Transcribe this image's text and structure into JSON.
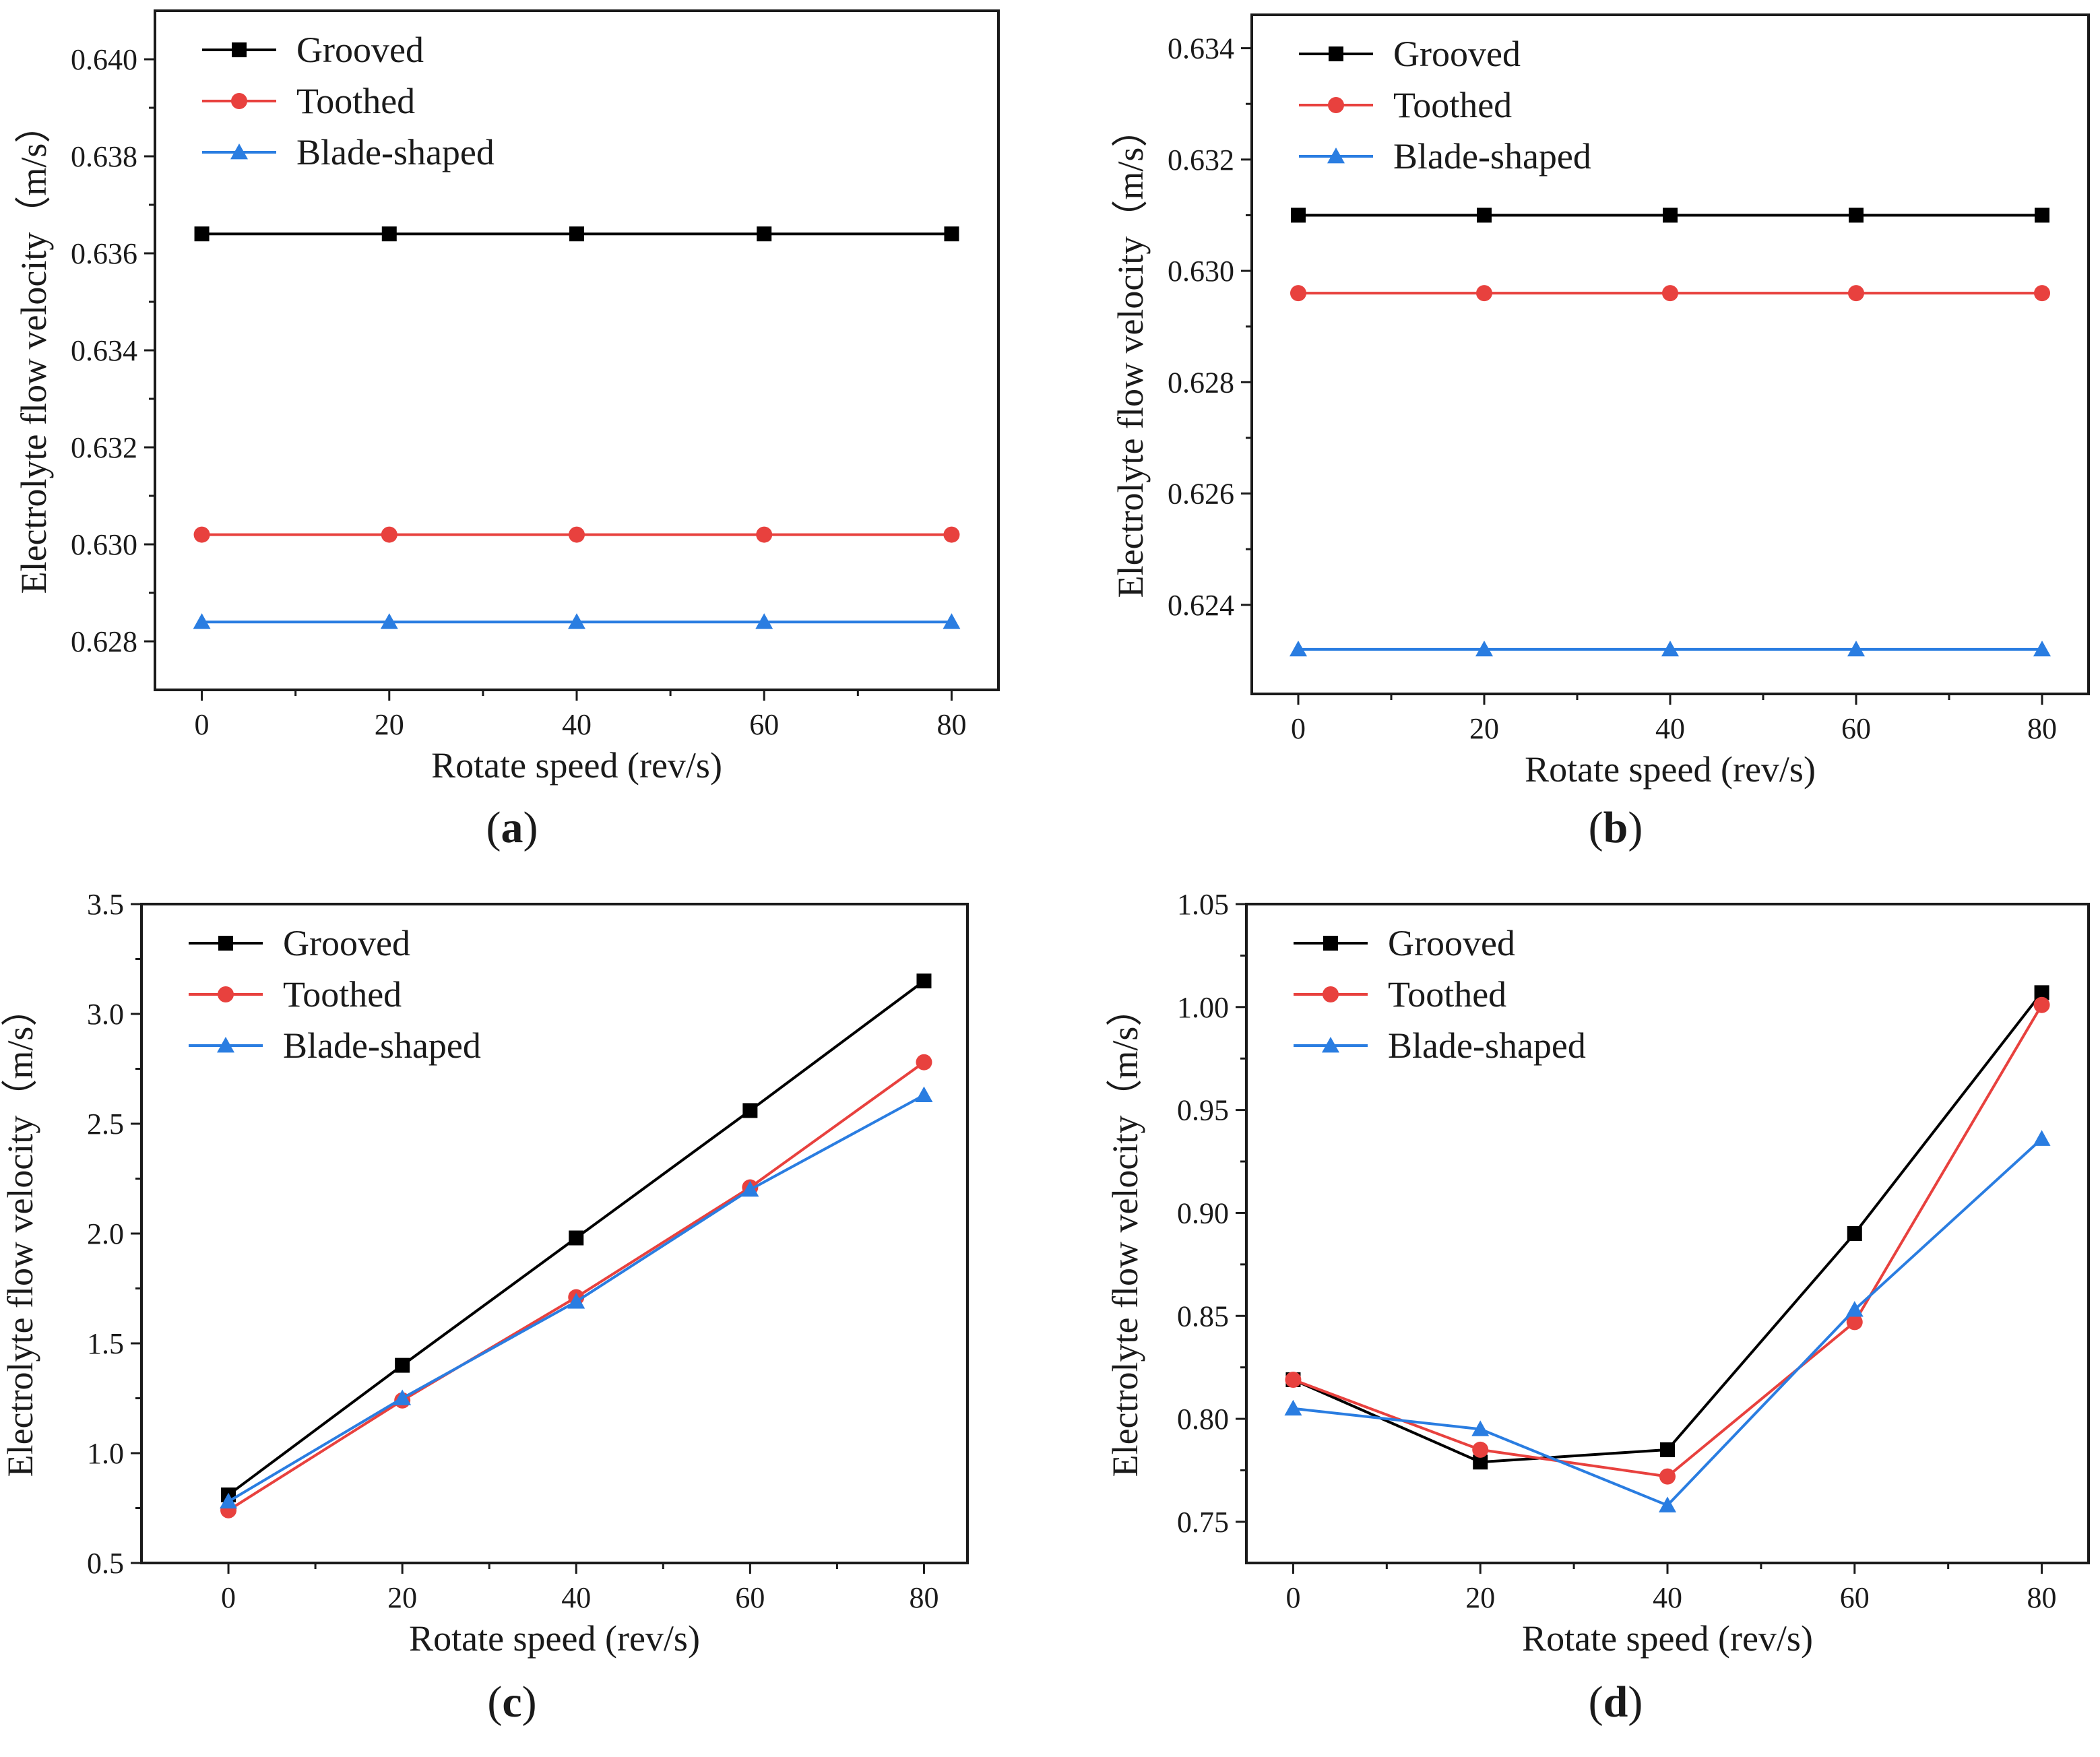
{
  "chart_data": [
    {
      "type": "line",
      "panel": "a",
      "caption": "a",
      "xlabel": "Rotate speed (rev/s)",
      "ylabel": "Electrolyte flow velocity（m/s）",
      "x": [
        0,
        20,
        40,
        60,
        80
      ],
      "xticks": [
        "0",
        "20",
        "40",
        "60",
        "80"
      ],
      "xlim": [
        -5,
        85
      ],
      "ylim": [
        0.627,
        0.641
      ],
      "yticks": [
        "0.628",
        "0.630",
        "0.632",
        "0.634",
        "0.636",
        "0.638",
        "0.640"
      ],
      "grid": false,
      "legend_position": "top-left",
      "series": [
        {
          "name": "Grooved",
          "color": "#000000",
          "marker": "square",
          "values": [
            0.6364,
            0.6364,
            0.6364,
            0.6364,
            0.6364
          ]
        },
        {
          "name": "Toothed",
          "color": "#e8413e",
          "marker": "circle",
          "values": [
            0.6302,
            0.6302,
            0.6302,
            0.6302,
            0.6302
          ]
        },
        {
          "name": "Blade-shaped",
          "color": "#2a7de1",
          "marker": "triangle",
          "values": [
            0.6284,
            0.6284,
            0.6284,
            0.6284,
            0.6284
          ]
        }
      ]
    },
    {
      "type": "line",
      "panel": "b",
      "caption": "b",
      "xlabel": "Rotate speed (rev/s)",
      "ylabel": "Electrolyte flow velocity（m/s）",
      "x": [
        0,
        20,
        40,
        60,
        80
      ],
      "xticks": [
        "0",
        "20",
        "40",
        "60",
        "80"
      ],
      "xlim": [
        -5,
        85
      ],
      "ylim": [
        0.6224,
        0.6346
      ],
      "yticks": [
        "0.624",
        "0.626",
        "0.628",
        "0.630",
        "0.632",
        "0.634"
      ],
      "grid": false,
      "legend_position": "top-left",
      "series": [
        {
          "name": "Grooved",
          "color": "#000000",
          "marker": "square",
          "values": [
            0.631,
            0.631,
            0.631,
            0.631,
            0.631
          ]
        },
        {
          "name": "Toothed",
          "color": "#e8413e",
          "marker": "circle",
          "values": [
            0.6296,
            0.6296,
            0.6296,
            0.6296,
            0.6296
          ]
        },
        {
          "name": "Blade-shaped",
          "color": "#2a7de1",
          "marker": "triangle",
          "values": [
            0.6232,
            0.6232,
            0.6232,
            0.6232,
            0.6232
          ]
        }
      ]
    },
    {
      "type": "line",
      "panel": "c",
      "caption": "c",
      "xlabel": "Rotate speed (rev/s)",
      "ylabel": "Electrolyte flow velocity（m/s）",
      "x": [
        0,
        20,
        40,
        60,
        80
      ],
      "xticks": [
        "0",
        "20",
        "40",
        "60",
        "80"
      ],
      "xlim": [
        -10,
        85
      ],
      "ylim": [
        0.5,
        3.5
      ],
      "yticks": [
        "0.5",
        "1.0",
        "1.5",
        "2.0",
        "2.5",
        "3.0",
        "3.5"
      ],
      "grid": false,
      "legend_position": "top-left",
      "series": [
        {
          "name": "Grooved",
          "color": "#000000",
          "marker": "square",
          "values": [
            0.81,
            1.4,
            1.98,
            2.56,
            3.15
          ]
        },
        {
          "name": "Toothed",
          "color": "#e8413e",
          "marker": "circle",
          "values": [
            0.74,
            1.24,
            1.71,
            2.21,
            2.78
          ]
        },
        {
          "name": "Blade-shaped",
          "color": "#2a7de1",
          "marker": "triangle",
          "values": [
            0.78,
            1.25,
            1.69,
            2.2,
            2.63
          ]
        }
      ]
    },
    {
      "type": "line",
      "panel": "d",
      "caption": "d",
      "xlabel": "Rotate speed (rev/s)",
      "ylabel": "Electrolyte flow velocity（m/s）",
      "x": [
        0,
        20,
        40,
        60,
        80
      ],
      "xticks": [
        "0",
        "20",
        "40",
        "60",
        "80"
      ],
      "xlim": [
        -5,
        85
      ],
      "ylim": [
        0.73,
        1.05
      ],
      "yticks": [
        "0.75",
        "0.80",
        "0.85",
        "0.90",
        "0.95",
        "1.00",
        "1.05"
      ],
      "grid": false,
      "legend_position": "top-left",
      "series": [
        {
          "name": "Grooved",
          "color": "#000000",
          "marker": "square",
          "values": [
            0.819,
            0.779,
            0.785,
            0.89,
            1.007
          ]
        },
        {
          "name": "Toothed",
          "color": "#e8413e",
          "marker": "circle",
          "values": [
            0.819,
            0.785,
            0.772,
            0.847,
            1.001
          ]
        },
        {
          "name": "Blade-shaped",
          "color": "#2a7de1",
          "marker": "triangle",
          "values": [
            0.805,
            0.795,
            0.758,
            0.853,
            0.936
          ]
        }
      ]
    }
  ]
}
